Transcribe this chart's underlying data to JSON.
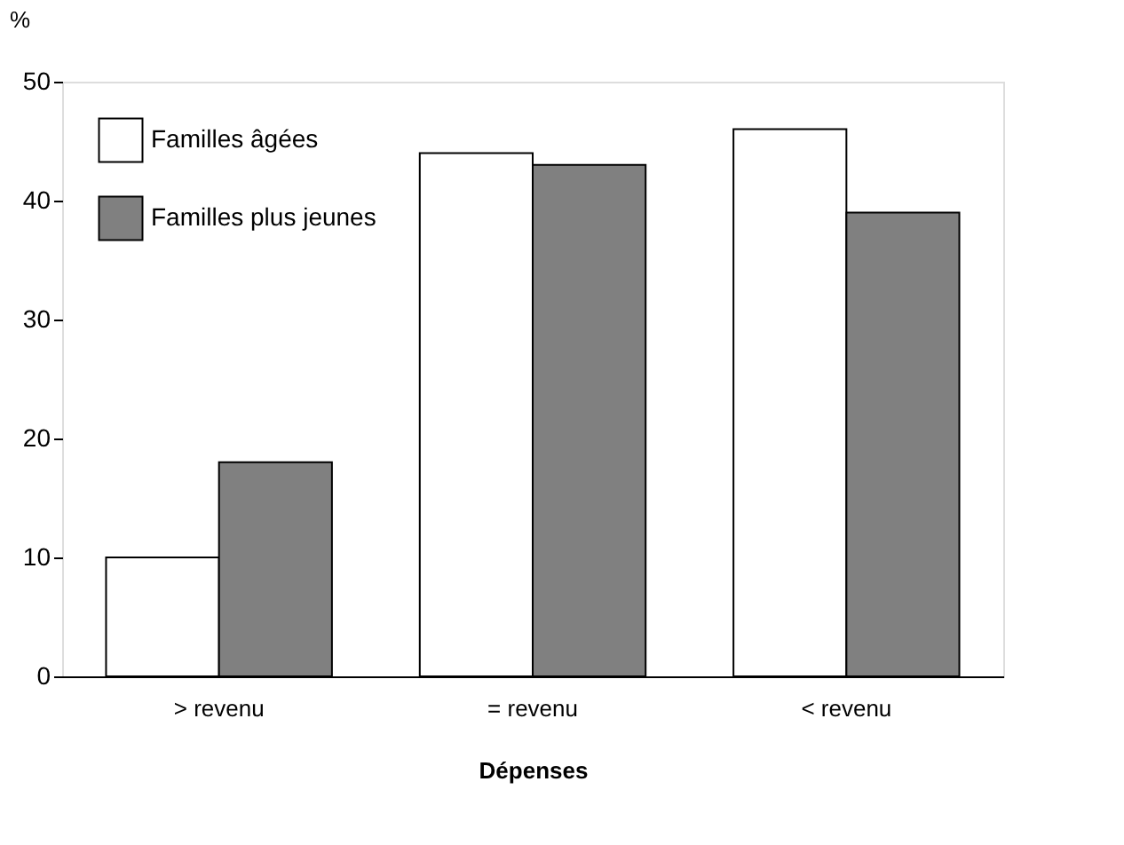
{
  "chart_data": {
    "type": "bar",
    "xlabel": "Dépenses",
    "ylabel": "%",
    "categories": [
      "> revenu",
      "= revenu",
      "< revenu"
    ],
    "series": [
      {
        "name": "Familles âgées",
        "color": "#ffffff",
        "values": [
          10,
          44,
          46
        ]
      },
      {
        "name": "Familles plus jeunes",
        "color": "#808080",
        "values": [
          18,
          43,
          39
        ]
      }
    ],
    "ylim": [
      0,
      50
    ],
    "yticks": [
      0,
      10,
      20,
      30,
      40,
      50
    ],
    "grid": false,
    "legend": "top left"
  }
}
